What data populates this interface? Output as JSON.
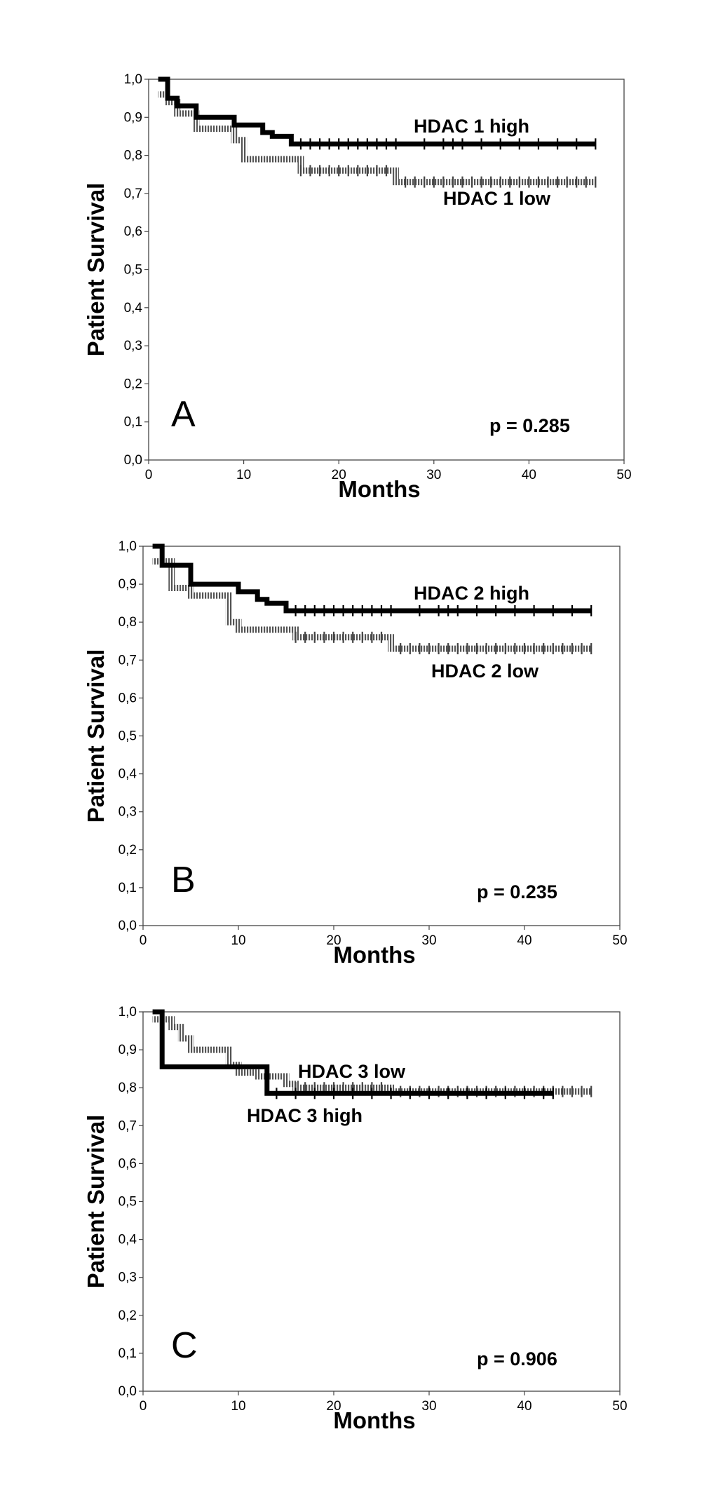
{
  "chart_data": [
    {
      "type": "line",
      "panel_label": "A",
      "xlabel": "Months",
      "ylabel": "Patient Survival",
      "xlim": [
        0,
        50
      ],
      "ylim": [
        0,
        1
      ],
      "x_ticks": [
        "0",
        "10",
        "20",
        "30",
        "40",
        "50"
      ],
      "y_ticks": [
        "0,0",
        "0,1",
        "0,2",
        "0,3",
        "0,4",
        "0,5",
        "0,6",
        "0,7",
        "0,8",
        "0,9",
        "1,0"
      ],
      "p_value": "p = 0.285",
      "series": [
        {
          "name": "HDAC 1 high",
          "style": "solid",
          "steps": [
            [
              1,
              1.0
            ],
            [
              2,
              0.95
            ],
            [
              3,
              0.93
            ],
            [
              5,
              0.9
            ],
            [
              9,
              0.88
            ],
            [
              12,
              0.86
            ],
            [
              13,
              0.85
            ],
            [
              15,
              0.83
            ],
            [
              47,
              0.83
            ]
          ],
          "censor": [
            16,
            17,
            18,
            19,
            20,
            21,
            22,
            23,
            24,
            25,
            26,
            29,
            31,
            32,
            33,
            35,
            37,
            39,
            41,
            43,
            45,
            47
          ]
        },
        {
          "name": "HDAC 1 low",
          "style": "hatched",
          "steps": [
            [
              1,
              0.96
            ],
            [
              2,
              0.94
            ],
            [
              3,
              0.91
            ],
            [
              5,
              0.87
            ],
            [
              9,
              0.84
            ],
            [
              10,
              0.79
            ],
            [
              16,
              0.76
            ],
            [
              26,
              0.73
            ],
            [
              47,
              0.73
            ]
          ],
          "censor": [
            16,
            17,
            18,
            19,
            20,
            21,
            22,
            23,
            24,
            25,
            27,
            28,
            29,
            30,
            31,
            32,
            33,
            34,
            35,
            36,
            37,
            38,
            39,
            40,
            41,
            42,
            43,
            44,
            45,
            46,
            47
          ]
        }
      ]
    },
    {
      "type": "line",
      "panel_label": "B",
      "xlabel": "Months",
      "ylabel": "Patient Survival",
      "xlim": [
        0,
        50
      ],
      "ylim": [
        0,
        1
      ],
      "x_ticks": [
        "0",
        "10",
        "20",
        "30",
        "40",
        "50"
      ],
      "y_ticks": [
        "0,0",
        "0,1",
        "0,2",
        "0,3",
        "0,4",
        "0,5",
        "0,6",
        "0,7",
        "0,8",
        "0,9",
        "1,0"
      ],
      "p_value": "p = 0.235",
      "series": [
        {
          "name": "HDAC 2 high",
          "style": "solid",
          "steps": [
            [
              1,
              1.0
            ],
            [
              2,
              0.95
            ],
            [
              5,
              0.9
            ],
            [
              10,
              0.88
            ],
            [
              12,
              0.86
            ],
            [
              13,
              0.85
            ],
            [
              15,
              0.83
            ],
            [
              47,
              0.83
            ]
          ],
          "censor": [
            16,
            17,
            18,
            19,
            20,
            21,
            22,
            23,
            24,
            25,
            26,
            29,
            31,
            32,
            33,
            35,
            37,
            39,
            41,
            43,
            45,
            47
          ]
        },
        {
          "name": "HDAC 2 low",
          "style": "hatched",
          "steps": [
            [
              1,
              0.96
            ],
            [
              3,
              0.89
            ],
            [
              5,
              0.87
            ],
            [
              9,
              0.8
            ],
            [
              10,
              0.78
            ],
            [
              16,
              0.76
            ],
            [
              26,
              0.73
            ],
            [
              47,
              0.73
            ]
          ],
          "censor": [
            16,
            17,
            18,
            19,
            20,
            21,
            22,
            23,
            24,
            25,
            27,
            28,
            29,
            30,
            31,
            32,
            33,
            34,
            35,
            36,
            37,
            38,
            39,
            40,
            41,
            42,
            43,
            44,
            45,
            46,
            47
          ]
        }
      ]
    },
    {
      "type": "line",
      "panel_label": "C",
      "xlabel": "Months",
      "ylabel": "Patient Survival",
      "xlim": [
        0,
        50
      ],
      "ylim": [
        0,
        1
      ],
      "x_ticks": [
        "0",
        "10",
        "20",
        "30",
        "40",
        "50"
      ],
      "y_ticks": [
        "0,0",
        "0,1",
        "0,2",
        "0,3",
        "0,4",
        "0,5",
        "0,6",
        "0,7",
        "0,8",
        "0,9",
        "1,0"
      ],
      "p_value": "p = 0.906",
      "series": [
        {
          "name": "HDAC 3 high",
          "style": "solid",
          "steps": [
            [
              1,
              1.0
            ],
            [
              2,
              0.855
            ],
            [
              13,
              0.785
            ],
            [
              43,
              0.785
            ]
          ],
          "censor": [
            14,
            16,
            18,
            20,
            22,
            24,
            26,
            28,
            30,
            32,
            34,
            36,
            38,
            40,
            42,
            43
          ]
        },
        {
          "name": "HDAC 3 low",
          "style": "hatched",
          "steps": [
            [
              1,
              0.98
            ],
            [
              3,
              0.96
            ],
            [
              4,
              0.93
            ],
            [
              5,
              0.9
            ],
            [
              9,
              0.86
            ],
            [
              10,
              0.84
            ],
            [
              12,
              0.83
            ],
            [
              15,
              0.81
            ],
            [
              16,
              0.8
            ],
            [
              26,
              0.79
            ],
            [
              47,
              0.79
            ]
          ],
          "censor": [
            16,
            17,
            18,
            19,
            20,
            21,
            22,
            23,
            24,
            25,
            27,
            28,
            29,
            30,
            31,
            32,
            33,
            34,
            35,
            36,
            37,
            38,
            39,
            40,
            41,
            42,
            43,
            44,
            45,
            46,
            47
          ]
        }
      ]
    }
  ]
}
